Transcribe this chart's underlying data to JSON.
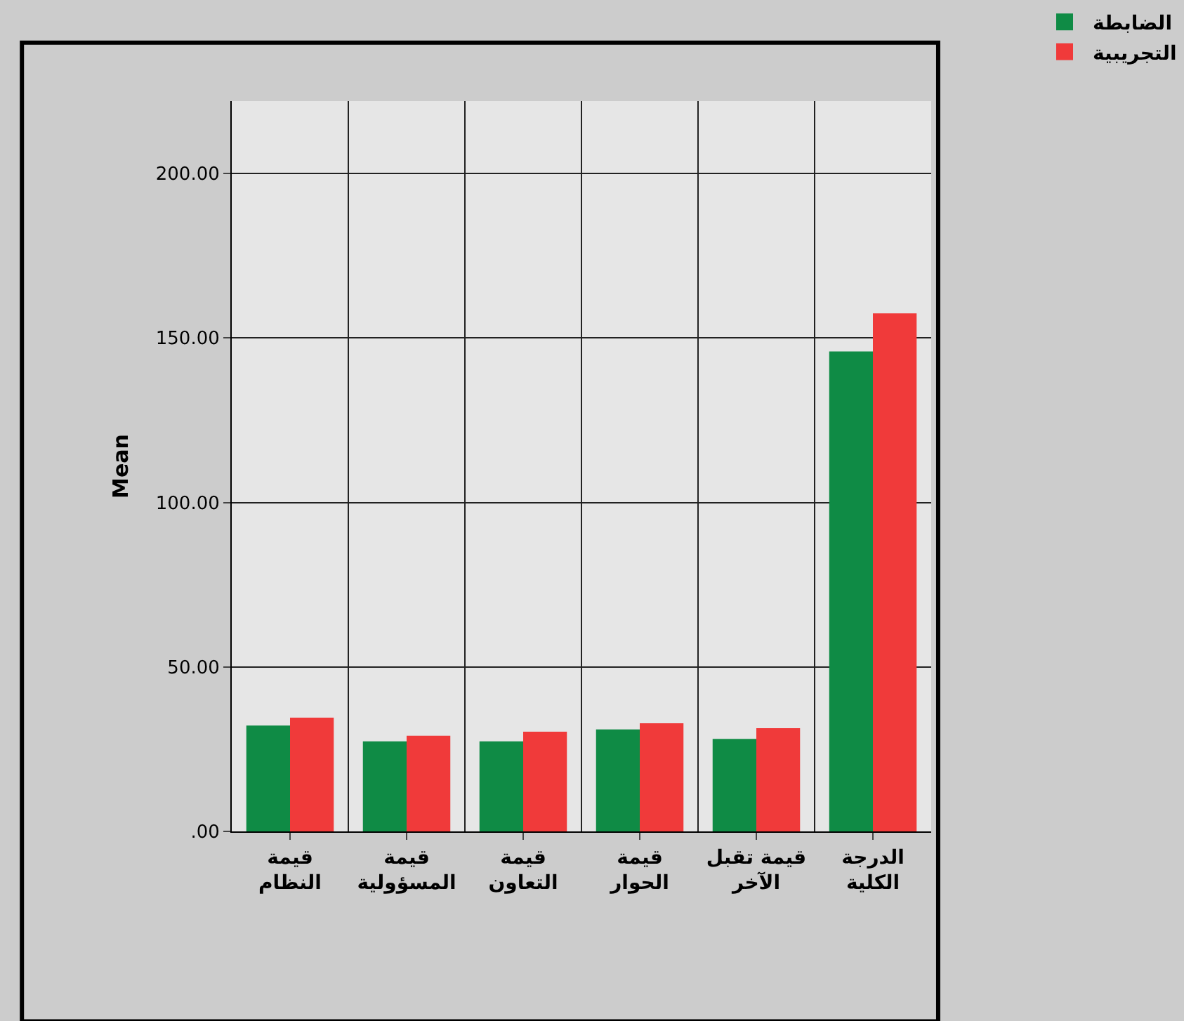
{
  "chart_data": {
    "type": "bar",
    "ylabel": "Mean",
    "categories": [
      "قيمة\nالنظام",
      "قيمة\nالمسؤولية",
      "قيمة\nالتعاون",
      "قيمة\nالحوار",
      "قيمة تقبل\nالآخر",
      "الدرجة\nالكلية"
    ],
    "series": [
      {
        "name": "الضابطة",
        "color": "#0f8b45",
        "values": [
          32.2,
          27.4,
          27.4,
          31.0,
          28.1,
          145.9
        ]
      },
      {
        "name": "التجريبية",
        "color": "#f03a3a",
        "values": [
          34.6,
          29.1,
          30.3,
          32.9,
          31.4,
          157.5
        ]
      }
    ],
    "ylim": [
      0,
      222
    ],
    "yticks": [
      {
        "value": 0,
        "label": ".00"
      },
      {
        "value": 50,
        "label": "50.00"
      },
      {
        "value": 100,
        "label": "100.00"
      },
      {
        "value": 150,
        "label": "150.00"
      },
      {
        "value": 200,
        "label": "200.00"
      }
    ],
    "grid": true,
    "legend": "top right"
  }
}
